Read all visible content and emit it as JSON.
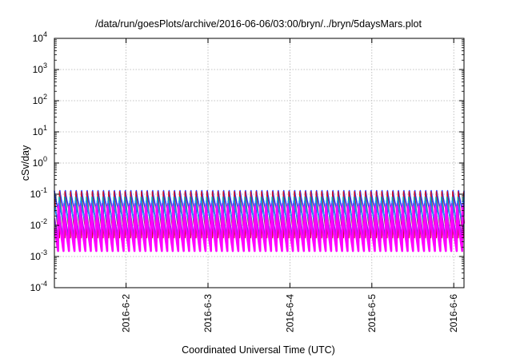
{
  "chart_data": {
    "type": "line",
    "title": "/data/run/goesPlots/archive/2016-06-06/03:00/bryn/../bryn/5daysMars.plot",
    "xlabel": "Coordinated Universal Time (UTC)",
    "ylabel": "cSv/day",
    "yscale": "log",
    "ylim": [
      0.0001,
      10000
    ],
    "y_ticks": [
      {
        "value": 0.0001,
        "base": "10",
        "exp": "-4"
      },
      {
        "value": 0.001,
        "base": "10",
        "exp": "-3"
      },
      {
        "value": 0.01,
        "base": "10",
        "exp": "-2"
      },
      {
        "value": 0.1,
        "base": "10",
        "exp": "-1"
      },
      {
        "value": 1,
        "base": "10",
        "exp": "0"
      },
      {
        "value": 10,
        "base": "10",
        "exp": "1"
      },
      {
        "value": 100,
        "base": "10",
        "exp": "2"
      },
      {
        "value": 1000,
        "base": "10",
        "exp": "3"
      },
      {
        "value": 10000,
        "base": "10",
        "exp": "4"
      }
    ],
    "xlim": [
      "2016-06-01 03:00",
      "2016-06-06 03:00"
    ],
    "x_ticks": [
      {
        "value": "2016-06-02 00:00",
        "label": "2016-6-2"
      },
      {
        "value": "2016-06-03 00:00",
        "label": "2016-6-3"
      },
      {
        "value": "2016-06-04 00:00",
        "label": "2016-6-4"
      },
      {
        "value": "2016-06-05 00:00",
        "label": "2016-6-5"
      },
      {
        "value": "2016-06-06 00:00",
        "label": "2016-6-6"
      }
    ],
    "grid": true,
    "cycle_hours": 1.6,
    "series": [
      {
        "color": "#1f3fff",
        "peak": 0.13,
        "trough": 0.02
      },
      {
        "color": "#c8102e",
        "peak": 0.12,
        "trough": 0.004
      },
      {
        "color": "#00aaaa",
        "peak": 0.08,
        "trough": 0.008
      },
      {
        "color": "#2288ff",
        "peak": 0.06,
        "trough": 0.012
      },
      {
        "color": "#8b2be2",
        "peak": 0.05,
        "trough": 0.003
      },
      {
        "color": "#ff00ff",
        "peak": 0.04,
        "trough": 0.0015
      }
    ]
  }
}
